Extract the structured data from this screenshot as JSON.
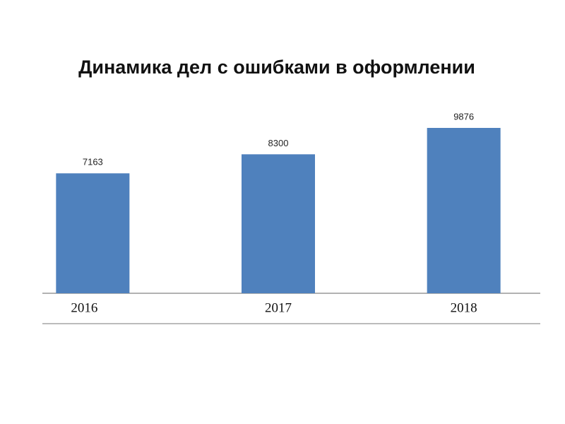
{
  "chart_data": {
    "type": "bar",
    "title": "Динамика дел с ошибками в оформлении",
    "categories": [
      "2016",
      "2017",
      "2018"
    ],
    "values": [
      7163,
      8300,
      9876
    ],
    "color": "#4f81bd"
  }
}
